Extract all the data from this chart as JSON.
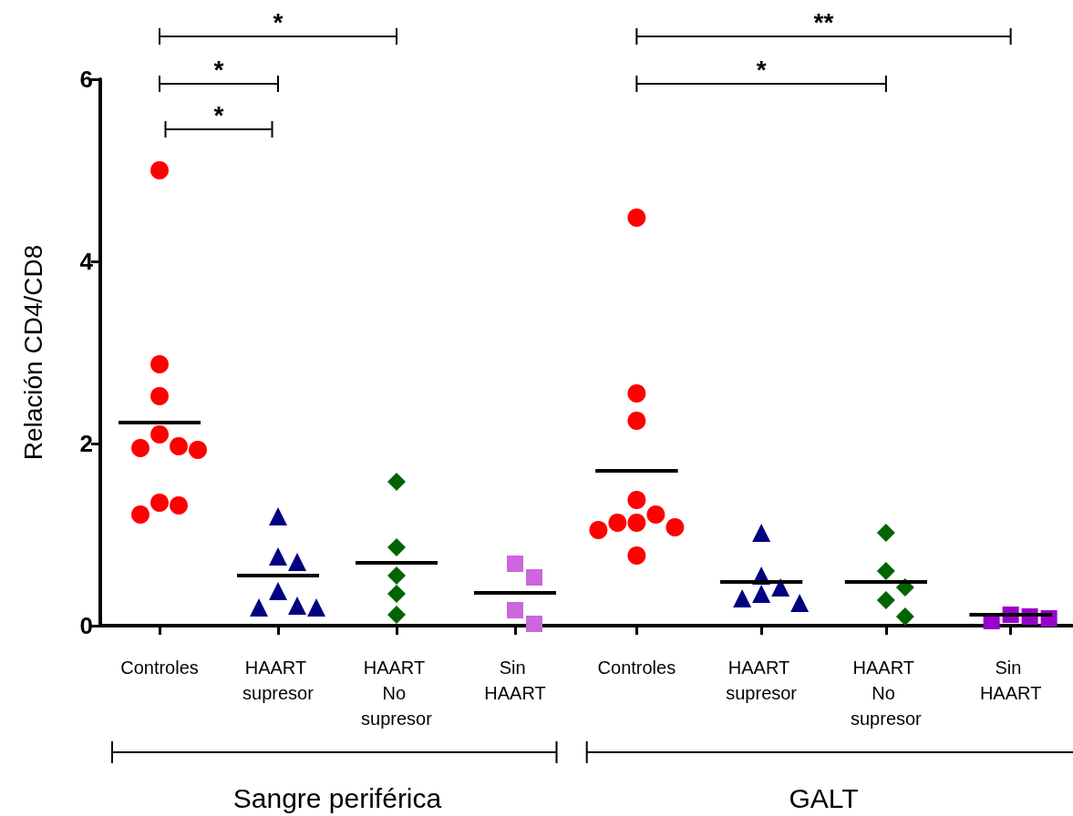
{
  "chart_data": [
    {
      "type": "scatter",
      "ylabel": "Relación CD4/CD8",
      "xlabel": "Sangre periférica",
      "categories": [
        "Controles",
        "HAART supresor",
        "HAART No supresor",
        "Sin HAART"
      ],
      "ylim": [
        0,
        6
      ],
      "yticks": [
        0,
        2,
        4,
        6
      ],
      "grid": false,
      "series": [
        {
          "color": "#ff0000",
          "marker": "circle",
          "x": [
            "Controles",
            "Controles",
            "Controles",
            "Controles",
            "Controles",
            "Controles",
            "Controles",
            "Controles",
            "Controles",
            "Controles"
          ],
          "values": [
            5.0,
            2.87,
            2.52,
            2.1,
            1.97,
            1.95,
            1.93,
            1.35,
            1.32,
            1.22
          ]
        },
        {
          "color": "#000080",
          "marker": "triangle",
          "x": [
            "HAART supresor",
            "HAART supresor",
            "HAART supresor",
            "HAART supresor",
            "HAART supresor",
            "HAART supresor",
            "HAART supresor"
          ],
          "values": [
            1.2,
            0.76,
            0.7,
            0.38,
            0.22,
            0.2,
            0.2
          ]
        },
        {
          "color": "#006400",
          "marker": "diamond",
          "x": [
            "HAART No supresor",
            "HAART No supresor",
            "HAART No supresor",
            "HAART No supresor",
            "HAART No supresor"
          ],
          "values": [
            1.58,
            0.86,
            0.55,
            0.35,
            0.12
          ]
        },
        {
          "color": "#cc66dd",
          "marker": "square",
          "x": [
            "Sin HAART",
            "Sin HAART",
            "Sin HAART",
            "Sin HAART"
          ],
          "values": [
            0.68,
            0.53,
            0.17,
            0.02
          ]
        },
        {
          "type": "box",
          "color": "#000000",
          "boxes": [
            {
              "low": 2.23,
              "q1": 2.23,
              "median": 2.23,
              "q3": 2.23,
              "high": 2.23
            },
            {
              "low": 0.55,
              "q1": 0.55,
              "median": 0.55,
              "q3": 0.55,
              "high": 0.55
            },
            {
              "low": 0.69,
              "q1": 0.69,
              "median": 0.69,
              "q3": 0.69,
              "high": 0.69
            },
            {
              "low": 0.36,
              "q1": 0.36,
              "median": 0.36,
              "q3": 0.36,
              "high": 0.36
            }
          ]
        }
      ],
      "annotations": [
        "*",
        "*",
        "*"
      ]
    },
    {
      "type": "scatter",
      "xlabel": "GALT",
      "categories": [
        "Controles",
        "HAART supresor",
        "HAART No supresor",
        "Sin HAART"
      ],
      "ylim": [
        0,
        6
      ],
      "yticks": [
        0,
        2,
        4,
        6
      ],
      "grid": false,
      "tick_labels": "x",
      "series": [
        {
          "color": "#ff0000",
          "marker": "circle",
          "x": [
            "Controles",
            "Controles",
            "Controles",
            "Controles",
            "Controles",
            "Controles",
            "Controles",
            "Controles",
            "Controles",
            "Controles"
          ],
          "values": [
            4.48,
            2.55,
            2.25,
            1.38,
            1.22,
            1.13,
            1.13,
            1.08,
            1.05,
            0.77
          ]
        },
        {
          "color": "#000080",
          "marker": "triangle",
          "x": [
            "HAART supresor",
            "HAART supresor",
            "HAART supresor",
            "HAART supresor",
            "HAART supresor",
            "HAART supresor"
          ],
          "values": [
            1.02,
            0.55,
            0.42,
            0.35,
            0.3,
            0.25
          ]
        },
        {
          "color": "#006400",
          "marker": "diamond",
          "x": [
            "HAART No supresor",
            "HAART No supresor",
            "HAART No supresor",
            "HAART No supresor",
            "HAART No supresor"
          ],
          "values": [
            1.02,
            0.6,
            0.42,
            0.28,
            0.1
          ]
        },
        {
          "color": "#9900cc",
          "marker": "square",
          "x": [
            "Sin HAART",
            "Sin HAART",
            "Sin HAART",
            "Sin HAART"
          ],
          "values": [
            0.12,
            0.1,
            0.05,
            0.08
          ]
        },
        {
          "type": "box",
          "color": "#000000",
          "boxes": [
            {
              "low": 1.7,
              "q1": 1.7,
              "median": 1.7,
              "q3": 1.7,
              "high": 1.7
            },
            {
              "low": 0.48,
              "q1": 0.48,
              "median": 0.48,
              "q3": 0.48,
              "high": 0.48
            },
            {
              "low": 0.48,
              "q1": 0.48,
              "median": 0.48,
              "q3": 0.48,
              "high": 0.48
            },
            {
              "low": 0.12,
              "q1": 0.12,
              "median": 0.12,
              "q3": 0.12,
              "high": 0.12
            }
          ]
        }
      ],
      "annotations": [
        "**",
        "*"
      ]
    }
  ]
}
